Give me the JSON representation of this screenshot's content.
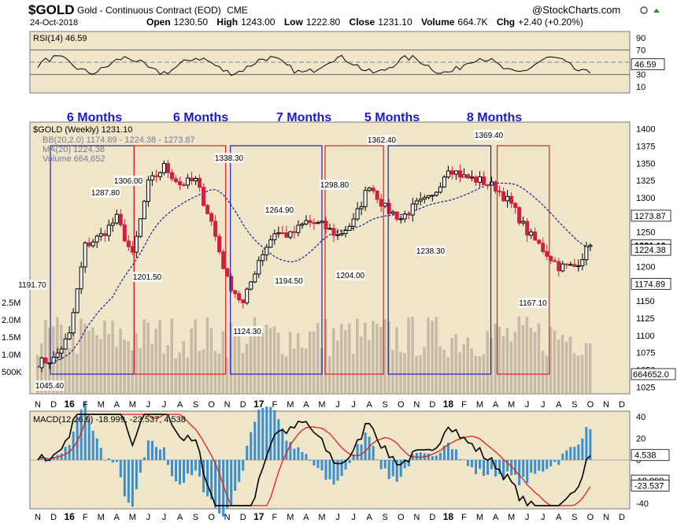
{
  "header": {
    "symbol": "$GOLD",
    "name": "Gold - Continuous Contract (EOD)",
    "exchange": "CME",
    "date": "24-Oct-2018",
    "watermark": "@StockCharts.com",
    "open_label": "Open",
    "open": "1230.50",
    "high_label": "High",
    "high": "1243.00",
    "low_label": "Low",
    "low": "1222.80",
    "close_label": "Close",
    "close": "1231.10",
    "volume_label": "Volume",
    "volume": "664.7K",
    "chg_label": "Chg",
    "chg": "+2.40 (+0.20%)"
  },
  "colors": {
    "panel_bg": "#efe5c8",
    "up_candle": "#000000",
    "down_candle": "#d0203c",
    "ma_line": "#1a1a9c",
    "period_text": "#1a1acc",
    "blue_box": "#2020b0",
    "red_box": "#e02020",
    "macd_line": "#000000",
    "signal_line": "#e02020",
    "histogram": "#3a8fd0",
    "volume_bar": "#b8a99a"
  },
  "x_axis": {
    "months_labels": [
      "N",
      "D",
      "16",
      "F",
      "M",
      "A",
      "M",
      "J",
      "J",
      "A",
      "S",
      "O",
      "N",
      "D",
      "17",
      "F",
      "M",
      "A",
      "M",
      "J",
      "J",
      "A",
      "S",
      "O",
      "N",
      "D",
      "18",
      "F",
      "M",
      "A",
      "M",
      "J",
      "J",
      "A",
      "S",
      "O",
      "N",
      "D"
    ]
  },
  "chart_data": [
    {
      "type": "line",
      "title": "RSI(14) 46.59",
      "series": [
        {
          "name": "RSI(14)",
          "last": 46.59
        }
      ],
      "y_ticks": [
        90,
        70,
        50,
        30,
        10
      ],
      "ylim": [
        0,
        100
      ],
      "reference_lines": [
        70,
        50,
        30
      ],
      "value_tag": "46.59"
    },
    {
      "type": "line",
      "title": "$GOLD (Weekly) 1231.10",
      "legend": [
        {
          "name": "BB(20,2.0) 1174.89 - 1224.38 - 1273.87"
        },
        {
          "name": "MA(20) 1224.38"
        },
        {
          "name": "Volume 664,652"
        }
      ],
      "y_ticks": [
        1400,
        1375,
        1350,
        1325,
        1300,
        1275,
        1250,
        1225,
        1200,
        1175,
        1150,
        1125,
        1100,
        1075,
        1050,
        1025
      ],
      "ylim": [
        1015,
        1410
      ],
      "volume_ticks": [
        "2.5M",
        "2.0M",
        "1.5M",
        "1.0M",
        "500K"
      ],
      "value_tags": [
        "1273.87",
        "1231.10",
        "1224.38",
        "1174.89",
        "664652.0"
      ],
      "period_labels": [
        "6 Months",
        "6 Months",
        "7 Months",
        "5 Months",
        "8 Months"
      ],
      "price_annotations": [
        "1191.70",
        "1045.40",
        "1287.80",
        "1306.00",
        "1201.50",
        "1338.30",
        "1124.30",
        "1264.90",
        "1194.50",
        "1298.80",
        "1204.00",
        "1362.40",
        "1238.30",
        "1369.40",
        "1167.10"
      ],
      "close_path": [
        [
          "2015-11",
          1060
        ],
        [
          "2015-12",
          1065
        ],
        [
          "2016-01",
          1100
        ],
        [
          "2016-02",
          1230
        ],
        [
          "2016-03",
          1245
        ],
        [
          "2016-04",
          1270
        ],
        [
          "2016-05",
          1215
        ],
        [
          "2016-06",
          1320
        ],
        [
          "2016-07",
          1345
        ],
        [
          "2016-08",
          1320
        ],
        [
          "2016-09",
          1325
        ],
        [
          "2016-10",
          1265
        ],
        [
          "2016-11",
          1180
        ],
        [
          "2016-12",
          1145
        ],
        [
          "2017-01",
          1210
        ],
        [
          "2017-02",
          1250
        ],
        [
          "2017-03",
          1245
        ],
        [
          "2017-04",
          1265
        ],
        [
          "2017-05",
          1260
        ],
        [
          "2017-06",
          1245
        ],
        [
          "2017-07",
          1265
        ],
        [
          "2017-08",
          1320
        ],
        [
          "2017-09",
          1285
        ],
        [
          "2017-10",
          1270
        ],
        [
          "2017-11",
          1290
        ],
        [
          "2017-12",
          1300
        ],
        [
          "2018-01",
          1345
        ],
        [
          "2018-02",
          1330
        ],
        [
          "2018-03",
          1325
        ],
        [
          "2018-04",
          1315
        ],
        [
          "2018-05",
          1290
        ],
        [
          "2018-06",
          1250
        ],
        [
          "2018-07",
          1225
        ],
        [
          "2018-08",
          1200
        ],
        [
          "2018-09",
          1200
        ],
        [
          "2018-10",
          1231.1
        ]
      ]
    },
    {
      "type": "line",
      "title": "MACD(12,26,9) -18.999, -23.537, 4.538",
      "series": [
        {
          "name": "MACD(12,26,9)",
          "last": -18.999
        },
        {
          "name": "Signal",
          "last": -23.537
        },
        {
          "name": "Histogram",
          "last": 4.538
        }
      ],
      "y_ticks": [
        40,
        20,
        0,
        -20,
        -40
      ],
      "ylim": [
        -45,
        45
      ],
      "value_tags": [
        "4.538",
        "-18.999",
        "-23.537"
      ]
    }
  ]
}
